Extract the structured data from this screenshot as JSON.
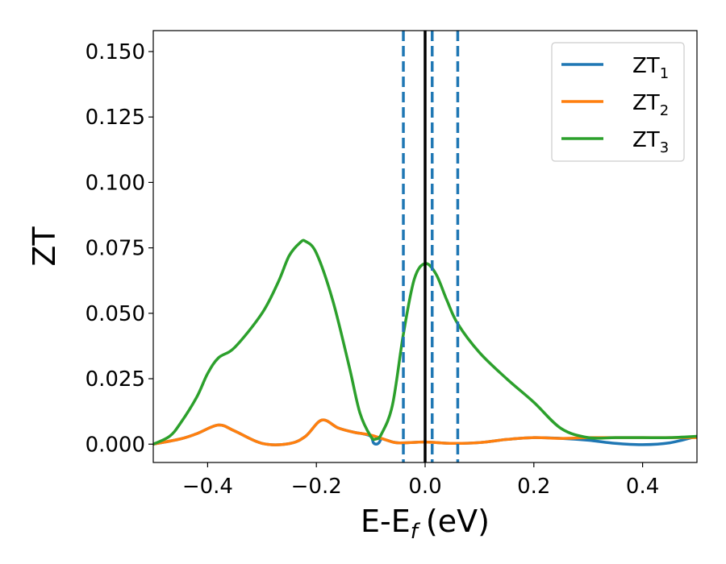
{
  "chart_data": {
    "type": "line",
    "xlabel": "E-E",
    "xlabel_sub": "f",
    "xlabel_unit": "(eV)",
    "ylabel": "ZT",
    "xlim": [
      -0.5,
      0.5
    ],
    "ylim": [
      -0.007,
      0.158
    ],
    "xticks": [
      -0.4,
      -0.2,
      0.0,
      0.2,
      0.4
    ],
    "xtick_labels": [
      "−0.4",
      "−0.2",
      "0.0",
      "0.2",
      "0.4"
    ],
    "yticks": [
      0.0,
      0.025,
      0.05,
      0.075,
      0.1,
      0.125,
      0.15
    ],
    "ytick_labels": [
      "0.000",
      "0.025",
      "0.050",
      "0.075",
      "0.100",
      "0.125",
      "0.150"
    ],
    "grid": false,
    "legend_position": "top-right",
    "series": [
      {
        "name": "ZT",
        "sub": "1",
        "color": "#1f77b4",
        "x": [
          -0.5,
          -0.45,
          -0.42,
          -0.38,
          -0.35,
          -0.3,
          -0.25,
          -0.22,
          -0.19,
          -0.16,
          -0.13,
          -0.115,
          -0.1,
          -0.095,
          -0.09,
          -0.085,
          -0.08,
          -0.07,
          -0.05,
          0.0,
          0.05,
          0.1,
          0.15,
          0.2,
          0.25,
          0.3,
          0.35,
          0.4,
          0.45,
          0.5
        ],
        "y": [
          0.0,
          0.002,
          0.004,
          0.0073,
          0.005,
          0.0003,
          0.0002,
          0.003,
          0.0092,
          0.0062,
          0.0045,
          0.004,
          0.003,
          0.0005,
          0.0,
          0.0005,
          0.002,
          0.0015,
          0.0005,
          0.0008,
          0.0003,
          0.0006,
          0.0018,
          0.0025,
          0.0022,
          0.0015,
          0.0003,
          -0.0002,
          0.0005,
          0.003
        ]
      },
      {
        "name": "ZT",
        "sub": "2",
        "color": "#ff7f0e",
        "x": [
          -0.5,
          -0.45,
          -0.42,
          -0.38,
          -0.35,
          -0.3,
          -0.25,
          -0.22,
          -0.19,
          -0.16,
          -0.13,
          -0.1,
          -0.07,
          -0.05,
          0.0,
          0.05,
          0.1,
          0.15,
          0.2,
          0.25,
          0.3,
          0.35,
          0.4,
          0.45,
          0.5
        ],
        "y": [
          0.0,
          0.002,
          0.004,
          0.0073,
          0.005,
          0.0003,
          0.0002,
          0.003,
          0.0092,
          0.0062,
          0.0045,
          0.0035,
          0.0015,
          0.0005,
          0.0008,
          0.0003,
          0.0006,
          0.0018,
          0.0025,
          0.0022,
          0.0025,
          0.0025,
          0.0025,
          0.0025,
          0.0025
        ]
      },
      {
        "name": "ZT",
        "sub": "3",
        "color": "#2ca02c",
        "x": [
          -0.5,
          -0.47,
          -0.45,
          -0.42,
          -0.4,
          -0.38,
          -0.35,
          -0.3,
          -0.27,
          -0.25,
          -0.23,
          -0.22,
          -0.2,
          -0.17,
          -0.14,
          -0.12,
          -0.1,
          -0.09,
          -0.08,
          -0.06,
          -0.04,
          -0.02,
          0.0,
          0.02,
          0.04,
          0.06,
          0.1,
          0.15,
          0.2,
          0.25,
          0.3,
          0.35,
          0.4,
          0.45,
          0.5
        ],
        "y": [
          0.0,
          0.003,
          0.008,
          0.018,
          0.027,
          0.033,
          0.037,
          0.05,
          0.062,
          0.072,
          0.077,
          0.0775,
          0.073,
          0.055,
          0.03,
          0.012,
          0.003,
          0.002,
          0.004,
          0.015,
          0.042,
          0.063,
          0.069,
          0.065,
          0.055,
          0.046,
          0.035,
          0.025,
          0.016,
          0.006,
          0.0025,
          0.0025,
          0.0025,
          0.0025,
          0.003
        ]
      }
    ],
    "vlines": [
      {
        "x": 0.0,
        "style": "solid",
        "color": "#000000"
      },
      {
        "x": -0.04,
        "style": "dashed",
        "color": "#1f77b4"
      },
      {
        "x": 0.013,
        "style": "dashed",
        "color": "#1f77b4"
      },
      {
        "x": 0.06,
        "style": "dashed",
        "color": "#1f77b4"
      }
    ]
  }
}
